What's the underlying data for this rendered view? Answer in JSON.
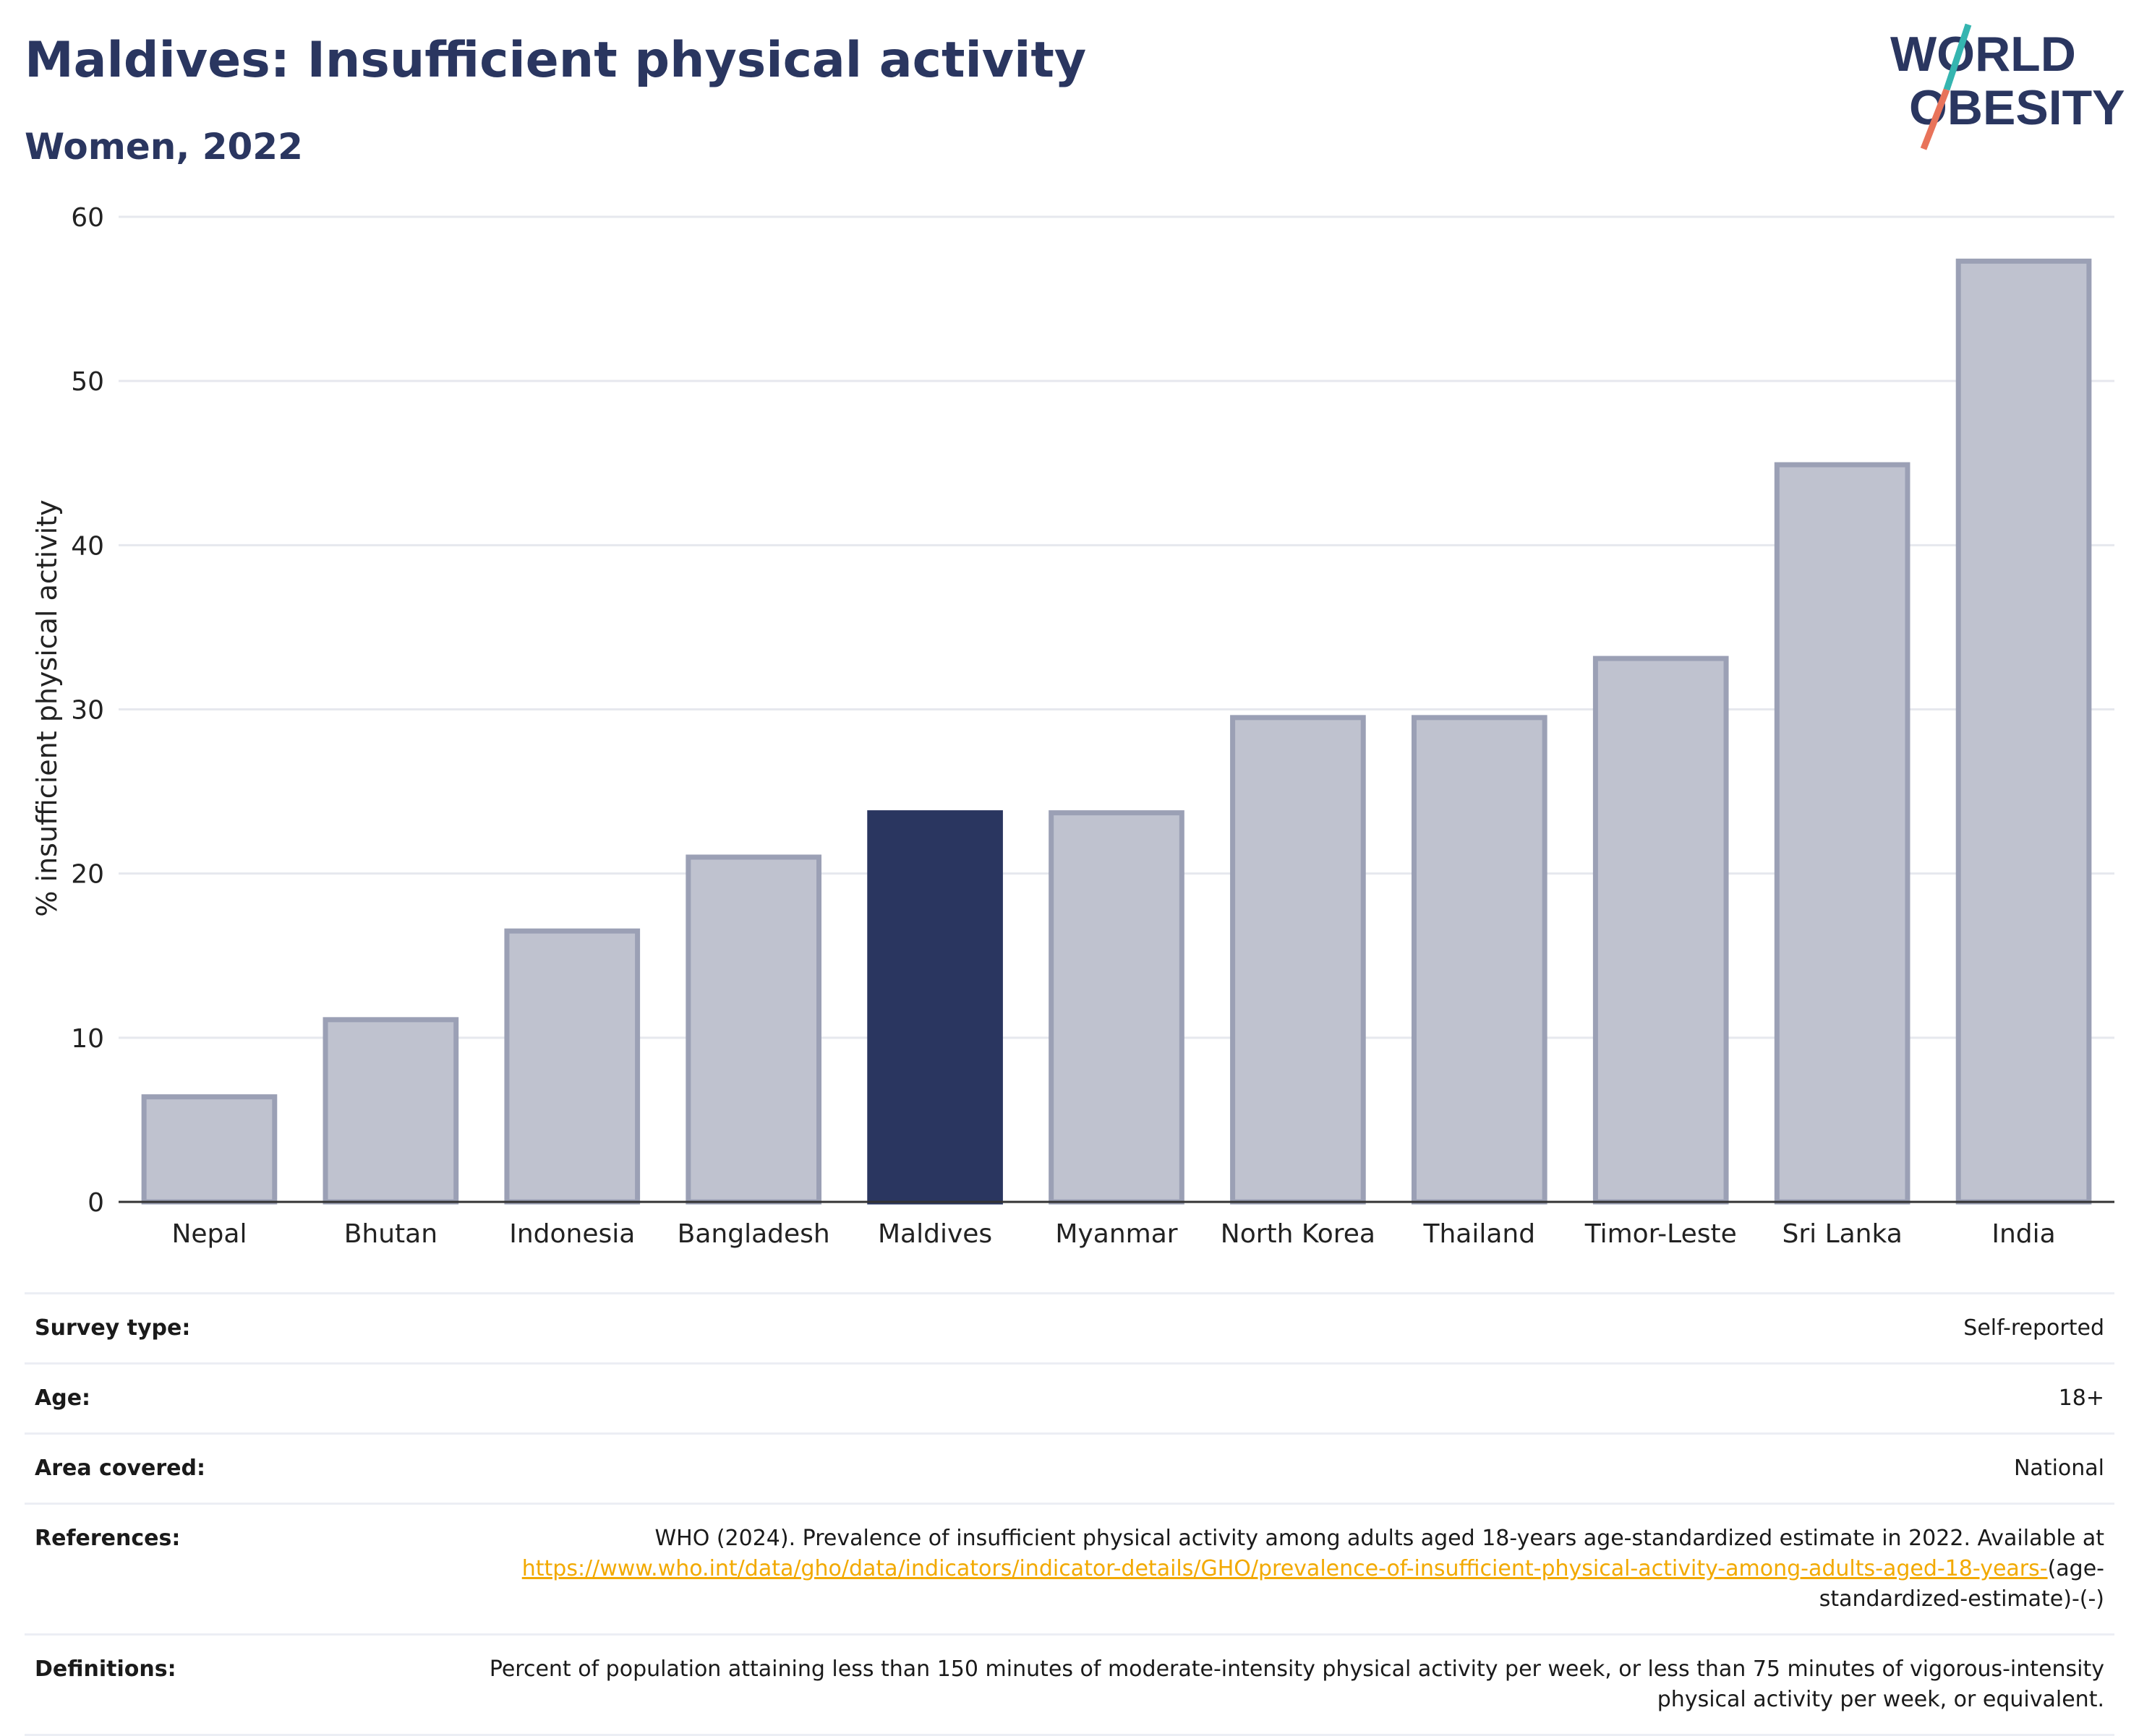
{
  "header": {
    "title": "Maldives: Insufficient physical activity",
    "subtitle": "Women, 2022"
  },
  "logo": {
    "line1": "WORLD",
    "line2": "OBESITY"
  },
  "colors": {
    "highlight": "#2a3660",
    "bar": "#bfc2cf",
    "bar_border": "#9ba0b5",
    "link": "#f2a900"
  },
  "chart_data": {
    "type": "bar",
    "categories": [
      "Nepal",
      "Bhutan",
      "Indonesia",
      "Bangladesh",
      "Maldives",
      "Myanmar",
      "North Korea",
      "Thailand",
      "Timor-Leste",
      "Sri Lanka",
      "India"
    ],
    "values": [
      6.4,
      11.1,
      16.5,
      21.0,
      23.7,
      23.7,
      29.5,
      29.5,
      33.1,
      44.9,
      57.3
    ],
    "highlight": "Maldives",
    "title": "",
    "xlabel": "",
    "ylabel": "% insufficient physical activity",
    "ylim": [
      0,
      60
    ],
    "yticks": [
      0,
      10,
      20,
      30,
      40,
      50,
      60
    ],
    "grid": true
  },
  "info": {
    "survey_type": {
      "label": "Survey type:",
      "value": "Self-reported"
    },
    "age": {
      "label": "Age:",
      "value": "18+"
    },
    "area": {
      "label": "Area covered:",
      "value": "National"
    },
    "references": {
      "label": "References:",
      "text": "WHO (2024). Prevalence of insufficient physical activity among adults aged 18-years age-standardized estimate in 2022. Available at",
      "link": "https://www.who.int/data/gho/data/indicators/indicator-details/GHO/prevalence-of-insufficient-physical-activity-among-adults-aged-18-years-",
      "link_suffix": "(age-standardized-estimate)-(-)"
    },
    "definitions": {
      "label": "Definitions:",
      "value": "Percent of population attaining less than 150 minutes of moderate-intensity physical activity per week, or less than 75 minutes of vigorous-intensity physical activity per week, or equivalent."
    }
  }
}
